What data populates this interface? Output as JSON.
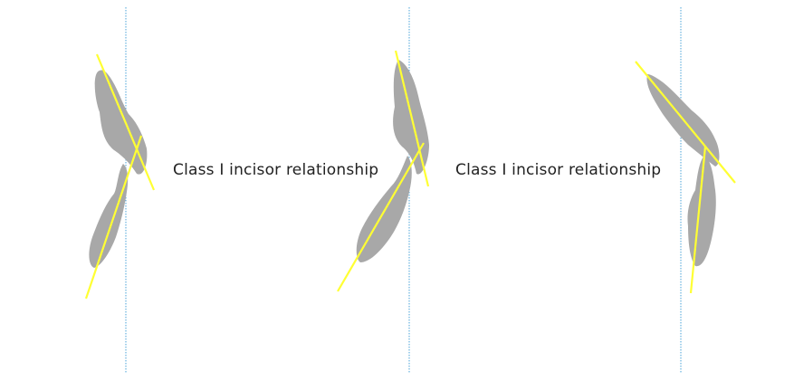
{
  "captions": {
    "first": "Class I incisor relationship",
    "second": "Class I incisor relationship"
  },
  "colors": {
    "tooth": "#a8a8a8",
    "axis_line": "#ffff33",
    "reference_line": "#4aa3d8",
    "background": "#ffffff",
    "text": "#222222"
  },
  "panels": [
    {
      "name": "panel-1"
    },
    {
      "name": "panel-2"
    },
    {
      "name": "panel-3"
    }
  ]
}
